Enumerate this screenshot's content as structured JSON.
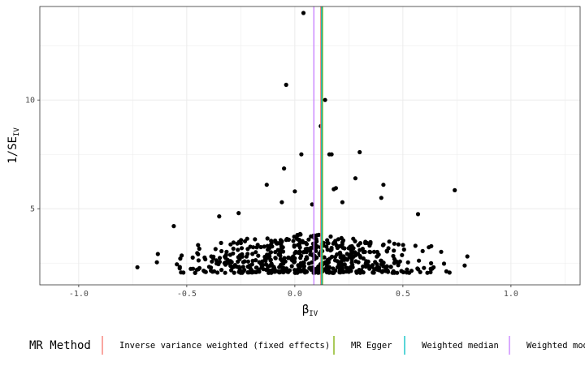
{
  "chart_data": {
    "type": "scatter",
    "title": "",
    "xlabel": "β",
    "xlabel_sub": "IV",
    "ylabel": "1/SE",
    "ylabel_sub": "IV",
    "xlim": [
      -1.18,
      1.32
    ],
    "ylim": [
      1.5,
      14.3
    ],
    "x_ticks": [
      -1.0,
      -0.5,
      0.0,
      0.5,
      1.0
    ],
    "x_tick_labels": [
      "-1.0",
      "-0.5",
      "0.0",
      "0.5",
      "1.0"
    ],
    "y_ticks": [
      5,
      10
    ],
    "y_tick_labels": [
      "5",
      "10"
    ],
    "grid": true,
    "point_color": "#000000",
    "legend": {
      "title": "MR Method",
      "placement": "bottom",
      "entries": [
        {
          "label": "Inverse variance weighted (fixed effects)",
          "color": "#F8766D"
        },
        {
          "label": "MR Egger",
          "color": "#7CAE00"
        },
        {
          "label": "Weighted median",
          "color": "#00BFC4"
        },
        {
          "label": "Weighted mode",
          "color": "#C77CFF"
        }
      ]
    },
    "vlines": [
      {
        "method": "Inverse variance weighted (fixed effects)",
        "x": 0.12,
        "color": "#F8766D"
      },
      {
        "method": "MR Egger",
        "x": 0.128,
        "color": "#7CAE00"
      },
      {
        "method": "Weighted median",
        "x": 0.124,
        "color": "#00BFC4"
      },
      {
        "method": "Weighted mode",
        "x": 0.088,
        "color": "#C77CFF"
      }
    ],
    "highlighted_points": [
      {
        "x": 0.04,
        "y": 14.0
      },
      {
        "x": -0.04,
        "y": 10.7
      },
      {
        "x": 0.14,
        "y": 10.0
      },
      {
        "x": 0.12,
        "y": 8.8
      },
      {
        "x": 0.16,
        "y": 7.5
      },
      {
        "x": 0.17,
        "y": 7.5
      },
      {
        "x": 0.3,
        "y": 7.6
      },
      {
        "x": 0.03,
        "y": 7.5
      },
      {
        "x": -0.05,
        "y": 6.85
      },
      {
        "x": 0.28,
        "y": 6.4
      },
      {
        "x": -0.13,
        "y": 6.1
      },
      {
        "x": 0.41,
        "y": 6.1
      },
      {
        "x": 0.18,
        "y": 5.9
      },
      {
        "x": 0.19,
        "y": 5.95
      },
      {
        "x": 0.74,
        "y": 5.85
      },
      {
        "x": 0.0,
        "y": 5.8
      },
      {
        "x": 0.4,
        "y": 5.5
      },
      {
        "x": 0.08,
        "y": 5.2
      },
      {
        "x": -0.06,
        "y": 5.3
      },
      {
        "x": 0.22,
        "y": 5.3
      },
      {
        "x": -0.26,
        "y": 4.8
      },
      {
        "x": 0.57,
        "y": 4.75
      },
      {
        "x": -0.35,
        "y": 4.65
      },
      {
        "x": -0.56,
        "y": 4.2
      }
    ],
    "bulk_points": {
      "x_center": 0.05,
      "x_sd": 0.38,
      "y_min": 2.05,
      "y_typical_max": 3.6,
      "count": 620
    }
  }
}
